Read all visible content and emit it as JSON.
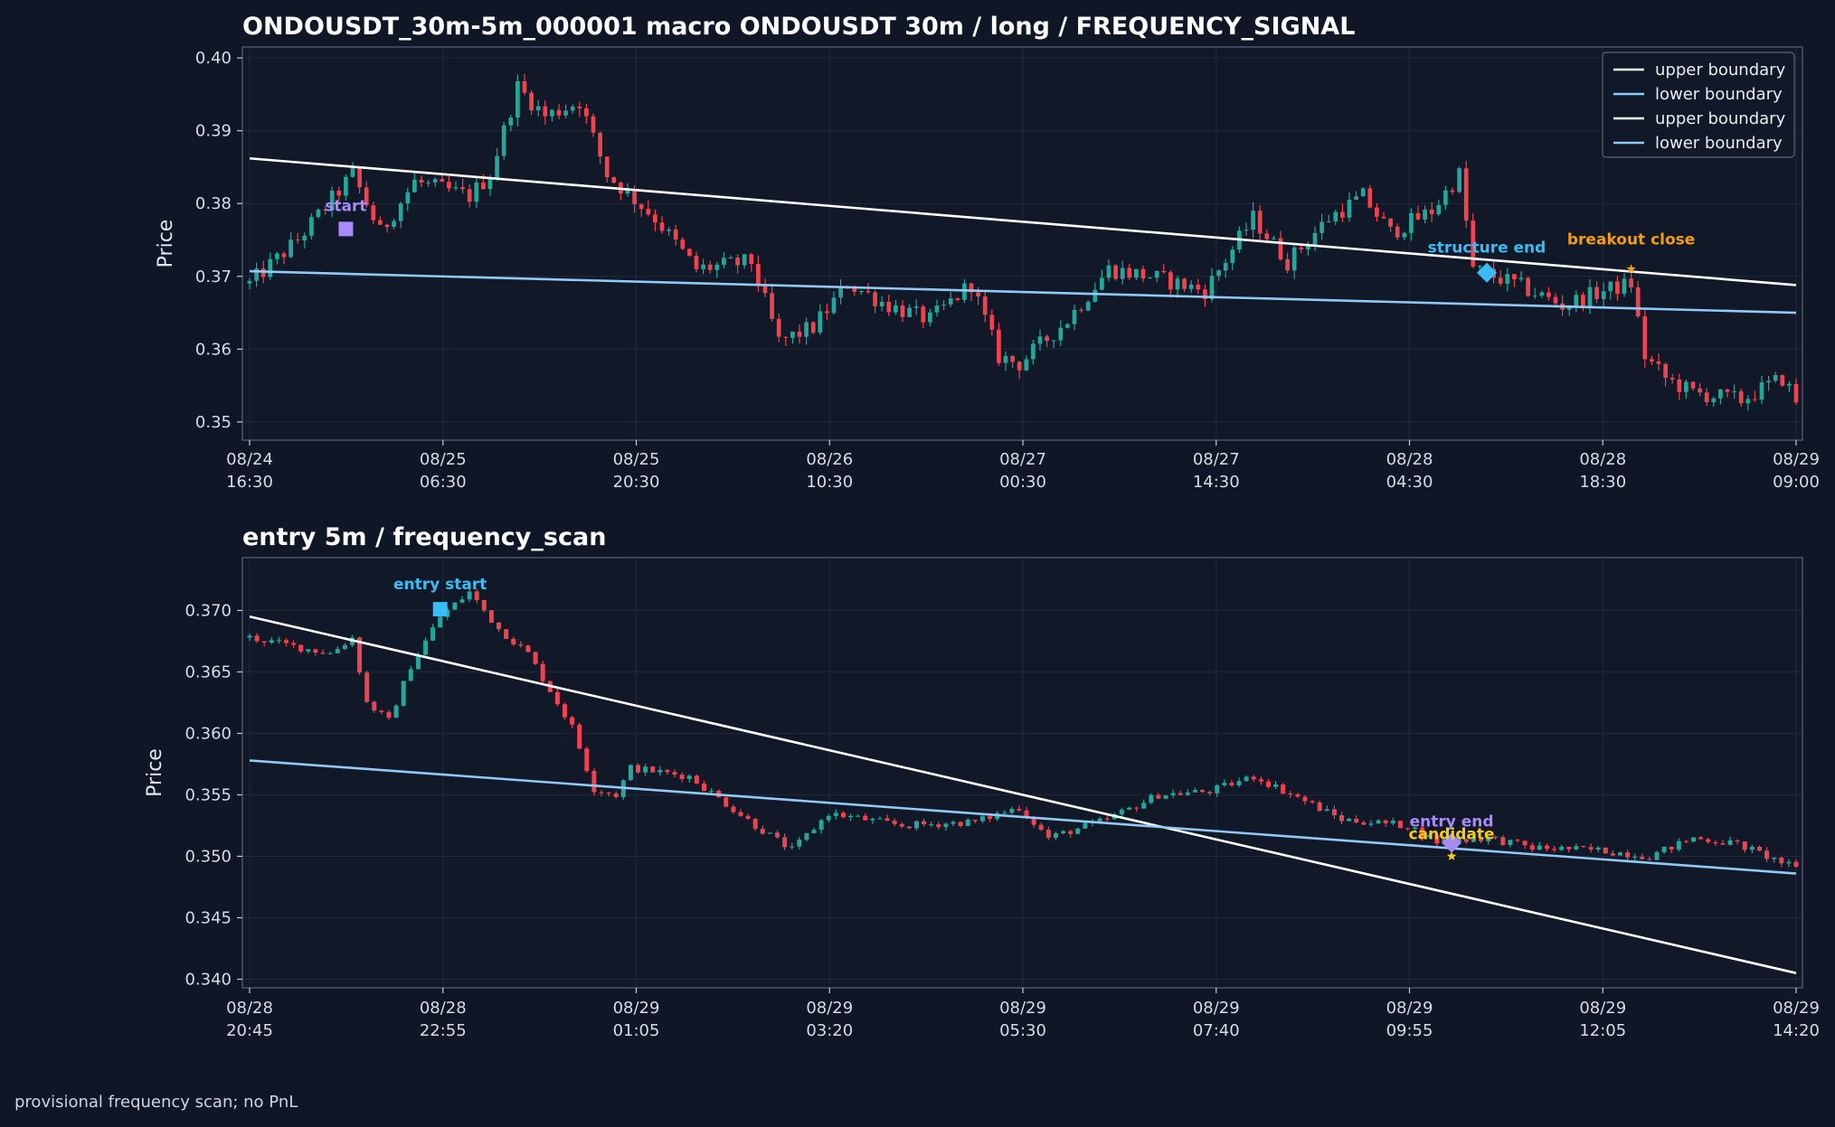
{
  "colors": {
    "background": "#0f1626",
    "panel": "#111827",
    "grid": "#1e2a3a",
    "up_candle": "#26a69a",
    "down_candle": "#ef4350",
    "upper_boundary": "#ffffff",
    "lower_boundary": "#90caf9",
    "start_marker": "#a78bfa",
    "structure_end": "#38bdf8",
    "breakout_close": "#f59e0b",
    "entry_start": "#38bdf8",
    "entry_end": "#a78bfa",
    "candidate": "#facc15"
  },
  "footer": "provisional frequency scan; no PnL",
  "chart_data": [
    {
      "type": "candlestick",
      "title": "ONDOUSDT_30m-5m_000001 macro ONDOUSDT 30m / long / FREQUENCY_SIGNAL",
      "ylabel": "Price",
      "xlabel": "",
      "ylim": [
        0.3475,
        0.4015
      ],
      "x_range": [
        "08/24 16:30",
        "08/29 09:00"
      ],
      "bar_interval_minutes": 30,
      "grid": true,
      "legend_position": "top-right",
      "x_ticks": [
        "08/24\n16:30",
        "08/25\n06:30",
        "08/25\n20:30",
        "08/26\n10:30",
        "08/27\n00:30",
        "08/27\n14:30",
        "08/28\n04:30",
        "08/28\n18:30",
        "08/29\n09:00"
      ],
      "y_ticks": [
        "0.35",
        "0.36",
        "0.37",
        "0.38",
        "0.39",
        "0.40"
      ],
      "y_tick_values": [
        0.35,
        0.36,
        0.37,
        0.38,
        0.39,
        0.4
      ],
      "close_path": [
        [
          "08/24 16:30",
          0.369
        ],
        [
          "08/24 20:00",
          0.375
        ],
        [
          "08/25 00:00",
          0.384
        ],
        [
          "08/25 02:00",
          0.376
        ],
        [
          "08/25 04:30",
          0.383
        ],
        [
          "08/25 08:30",
          0.381
        ],
        [
          "08/25 10:00",
          0.384
        ],
        [
          "08/25 12:00",
          0.396
        ],
        [
          "08/25 14:00",
          0.392
        ],
        [
          "08/25 16:30",
          0.394
        ],
        [
          "08/25 18:30",
          0.384
        ],
        [
          "08/25 22:00",
          0.378
        ],
        [
          "08/26 01:00",
          0.371
        ],
        [
          "08/26 05:00",
          0.372
        ],
        [
          "08/26 07:00",
          0.361
        ],
        [
          "08/26 09:30",
          0.363
        ],
        [
          "08/26 12:00",
          0.369
        ],
        [
          "08/26 15:00",
          0.366
        ],
        [
          "08/26 18:00",
          0.364
        ],
        [
          "08/26 21:00",
          0.369
        ],
        [
          "08/26 23:00",
          0.359
        ],
        [
          "08/27 00:30",
          0.358
        ],
        [
          "08/27 04:00",
          0.364
        ],
        [
          "08/27 07:00",
          0.371
        ],
        [
          "08/27 10:00",
          0.37
        ],
        [
          "08/27 14:00",
          0.368
        ],
        [
          "08/27 17:30",
          0.378
        ],
        [
          "08/27 20:00",
          0.372
        ],
        [
          "08/27 23:00",
          0.378
        ],
        [
          "08/28 01:30",
          0.381
        ],
        [
          "08/28 03:30",
          0.376
        ],
        [
          "08/28 06:30",
          0.379
        ],
        [
          "08/28 08:30",
          0.384
        ],
        [
          "08/28 09:30",
          0.371
        ],
        [
          "08/28 12:30",
          0.369
        ],
        [
          "08/28 16:00",
          0.366
        ],
        [
          "08/28 19:00",
          0.368
        ],
        [
          "08/28 21:00",
          0.369
        ],
        [
          "08/28 22:00",
          0.359
        ],
        [
          "08/28 23:30",
          0.356
        ],
        [
          "08/29 01:30",
          0.354
        ],
        [
          "08/29 05:00",
          0.353
        ],
        [
          "08/29 08:00",
          0.356
        ],
        [
          "08/29 09:00",
          0.353
        ]
      ],
      "series": [
        {
          "name": "upper boundary",
          "points": [
            [
              "08/24 16:30",
              0.3862
            ],
            [
              "08/29 09:00",
              0.3688
            ]
          ]
        },
        {
          "name": "lower boundary",
          "points": [
            [
              "08/24 16:30",
              0.3707
            ],
            [
              "08/29 09:00",
              0.365
            ]
          ]
        },
        {
          "name": "upper boundary",
          "points": []
        },
        {
          "name": "lower boundary",
          "points": []
        }
      ],
      "annotations": [
        {
          "label": "start",
          "x": "08/24 23:30",
          "y": 0.3765,
          "marker": "square",
          "color_key": "start_marker"
        },
        {
          "label": "structure end",
          "x": "08/28 10:30",
          "y": 0.3705,
          "marker": "diamond",
          "color_key": "structure_end"
        },
        {
          "label": "breakout close",
          "x": "08/28 21:00",
          "y": 0.371,
          "marker": "star",
          "color_key": "breakout_close"
        }
      ]
    },
    {
      "type": "candlestick",
      "title": "entry 5m / frequency_scan",
      "ylabel": "Price",
      "xlabel": "",
      "ylim": [
        0.3393,
        0.3743
      ],
      "x_range": [
        "08/28 20:45",
        "08/29 14:20"
      ],
      "bar_interval_minutes": 5,
      "grid": true,
      "x_ticks": [
        "08/28\n20:45",
        "08/28\n22:55",
        "08/29\n01:05",
        "08/29\n03:20",
        "08/29\n05:30",
        "08/29\n07:40",
        "08/29\n09:55",
        "08/29\n12:05",
        "08/29\n14:20"
      ],
      "y_ticks": [
        "0.340",
        "0.345",
        "0.350",
        "0.355",
        "0.360",
        "0.365",
        "0.370"
      ],
      "y_tick_values": [
        0.34,
        0.345,
        0.35,
        0.355,
        0.36,
        0.365,
        0.37
      ],
      "close_path": [
        [
          "08/28 20:45",
          0.3678
        ],
        [
          "08/28 21:40",
          0.3665
        ],
        [
          "08/28 21:55",
          0.3678
        ],
        [
          "08/28 22:05",
          0.3625
        ],
        [
          "08/28 22:20",
          0.361
        ],
        [
          "08/28 22:35",
          0.3655
        ],
        [
          "08/28 22:55",
          0.3695
        ],
        [
          "08/28 23:15",
          0.3715
        ],
        [
          "08/28 23:35",
          0.3685
        ],
        [
          "08/28 23:55",
          0.3665
        ],
        [
          "08/29 00:25",
          0.3605
        ],
        [
          "08/29 00:40",
          0.3555
        ],
        [
          "08/29 00:55",
          0.355
        ],
        [
          "08/29 01:05",
          0.3572
        ],
        [
          "08/29 01:45",
          0.3565
        ],
        [
          "08/29 02:30",
          0.3525
        ],
        [
          "08/29 02:55",
          0.3505
        ],
        [
          "08/29 03:20",
          0.3535
        ],
        [
          "08/29 04:10",
          0.3525
        ],
        [
          "08/29 05:00",
          0.3528
        ],
        [
          "08/29 05:30",
          0.354
        ],
        [
          "08/29 05:50",
          0.3515
        ],
        [
          "08/29 06:30",
          0.353
        ],
        [
          "08/29 07:05",
          0.355
        ],
        [
          "08/29 07:40",
          0.3553
        ],
        [
          "08/29 08:10",
          0.3565
        ],
        [
          "08/29 08:40",
          0.3548
        ],
        [
          "08/29 09:10",
          0.353
        ],
        [
          "08/29 09:55",
          0.3525
        ],
        [
          "08/29 10:15",
          0.3512
        ],
        [
          "08/29 10:50",
          0.3515
        ],
        [
          "08/29 11:20",
          0.3507
        ],
        [
          "08/29 12:05",
          0.3505
        ],
        [
          "08/29 12:40",
          0.35
        ],
        [
          "08/29 13:10",
          0.3515
        ],
        [
          "08/29 13:40",
          0.351
        ],
        [
          "08/29 14:20",
          0.349
        ]
      ],
      "series": [
        {
          "name": "upper boundary",
          "points": [
            [
              "08/28 20:45",
              0.3695
            ],
            [
              "08/29 14:20",
              0.3405
            ]
          ]
        },
        {
          "name": "lower boundary",
          "points": [
            [
              "08/28 20:45",
              0.3578
            ],
            [
              "08/29 14:20",
              0.3486
            ]
          ]
        }
      ],
      "annotations": [
        {
          "label": "entry start",
          "x": "08/28 22:55",
          "y": 0.3701,
          "marker": "square",
          "color_key": "entry_start"
        },
        {
          "label": "entry end",
          "x": "08/29 10:25",
          "y": 0.3511,
          "marker": "diamond",
          "color_key": "entry_end"
        },
        {
          "label": "candidate",
          "x": "08/29 10:25",
          "y": 0.35,
          "marker": "star",
          "color_key": "candidate"
        }
      ]
    }
  ]
}
